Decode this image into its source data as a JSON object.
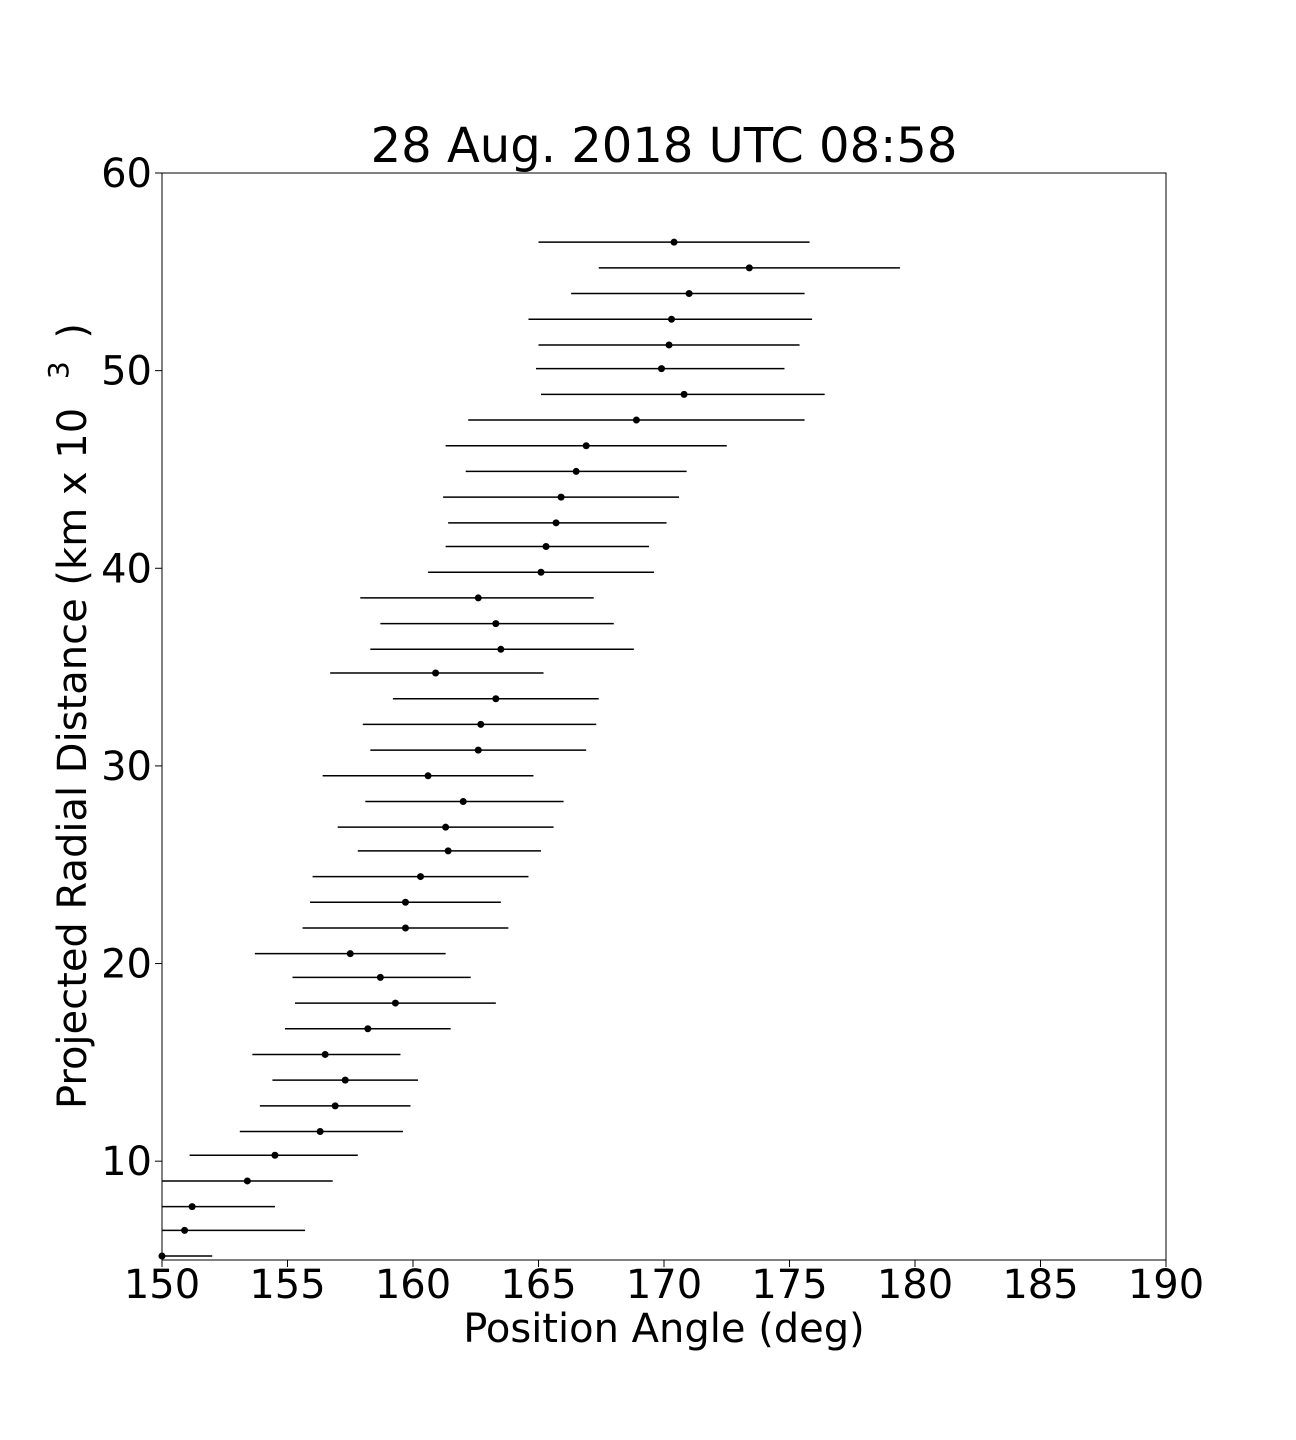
{
  "chart_data": {
    "type": "scatter",
    "title": "28 Aug. 2018 UTC 08:58",
    "xlabel": "Position Angle (deg)",
    "ylabel": "Projected Radial Distance (km x 10",
    "ylabel_superscript": "3",
    "ylabel_close": ")",
    "xlim": [
      150,
      190
    ],
    "ylim": [
      5,
      60
    ],
    "x_ticks": [
      150,
      155,
      160,
      165,
      170,
      175,
      180,
      185,
      190
    ],
    "x_tick_labels": [
      "150",
      "155",
      "160",
      "165",
      "170",
      "175",
      "180",
      "185",
      "190"
    ],
    "y_ticks": [
      10,
      20,
      30,
      40,
      50,
      60
    ],
    "y_tick_labels": [
      "10",
      "20",
      "30",
      "40",
      "50",
      "60"
    ],
    "grid": false,
    "legend": false,
    "marker_color": "#000000",
    "errorbar_color": "#000000",
    "series": [
      {
        "points": [
          {
            "x": 150.0,
            "y": 5.2,
            "xerr_low": 150.0,
            "xerr_high": 152.0
          },
          {
            "x": 150.9,
            "y": 6.5,
            "xerr_low": 150.0,
            "xerr_high": 155.7
          },
          {
            "x": 151.2,
            "y": 7.7,
            "xerr_low": 150.0,
            "xerr_high": 154.5
          },
          {
            "x": 153.4,
            "y": 9.0,
            "xerr_low": 150.0,
            "xerr_high": 156.8
          },
          {
            "x": 154.5,
            "y": 10.3,
            "xerr_low": 151.1,
            "xerr_high": 157.8
          },
          {
            "x": 156.3,
            "y": 11.5,
            "xerr_low": 153.1,
            "xerr_high": 159.6
          },
          {
            "x": 156.9,
            "y": 12.8,
            "xerr_low": 153.9,
            "xerr_high": 159.9
          },
          {
            "x": 157.3,
            "y": 14.1,
            "xerr_low": 154.4,
            "xerr_high": 160.2
          },
          {
            "x": 156.5,
            "y": 15.4,
            "xerr_low": 153.6,
            "xerr_high": 159.5
          },
          {
            "x": 158.2,
            "y": 16.7,
            "xerr_low": 154.9,
            "xerr_high": 161.5
          },
          {
            "x": 159.3,
            "y": 18.0,
            "xerr_low": 155.3,
            "xerr_high": 163.3
          },
          {
            "x": 158.7,
            "y": 19.3,
            "xerr_low": 155.2,
            "xerr_high": 162.3
          },
          {
            "x": 157.5,
            "y": 20.5,
            "xerr_low": 153.7,
            "xerr_high": 161.3
          },
          {
            "x": 159.7,
            "y": 21.8,
            "xerr_low": 155.6,
            "xerr_high": 163.8
          },
          {
            "x": 159.7,
            "y": 23.1,
            "xerr_low": 155.9,
            "xerr_high": 163.5
          },
          {
            "x": 160.3,
            "y": 24.4,
            "xerr_low": 156.0,
            "xerr_high": 164.6
          },
          {
            "x": 161.4,
            "y": 25.7,
            "xerr_low": 157.8,
            "xerr_high": 165.1
          },
          {
            "x": 161.3,
            "y": 26.9,
            "xerr_low": 157.0,
            "xerr_high": 165.6
          },
          {
            "x": 162.0,
            "y": 28.2,
            "xerr_low": 158.1,
            "xerr_high": 166.0
          },
          {
            "x": 160.6,
            "y": 29.5,
            "xerr_low": 156.4,
            "xerr_high": 164.8
          },
          {
            "x": 162.6,
            "y": 30.8,
            "xerr_low": 158.3,
            "xerr_high": 166.9
          },
          {
            "x": 162.7,
            "y": 32.1,
            "xerr_low": 158.0,
            "xerr_high": 167.3
          },
          {
            "x": 163.3,
            "y": 33.4,
            "xerr_low": 159.2,
            "xerr_high": 167.4
          },
          {
            "x": 160.9,
            "y": 34.7,
            "xerr_low": 156.7,
            "xerr_high": 165.2
          },
          {
            "x": 163.5,
            "y": 35.9,
            "xerr_low": 158.3,
            "xerr_high": 168.8
          },
          {
            "x": 163.3,
            "y": 37.2,
            "xerr_low": 158.7,
            "xerr_high": 168.0
          },
          {
            "x": 162.6,
            "y": 38.5,
            "xerr_low": 157.9,
            "xerr_high": 167.2
          },
          {
            "x": 165.1,
            "y": 39.8,
            "xerr_low": 160.6,
            "xerr_high": 169.6
          },
          {
            "x": 165.3,
            "y": 41.1,
            "xerr_low": 161.3,
            "xerr_high": 169.4
          },
          {
            "x": 165.7,
            "y": 42.3,
            "xerr_low": 161.4,
            "xerr_high": 170.1
          },
          {
            "x": 165.9,
            "y": 43.6,
            "xerr_low": 161.2,
            "xerr_high": 170.6
          },
          {
            "x": 166.5,
            "y": 44.9,
            "xerr_low": 162.1,
            "xerr_high": 170.9
          },
          {
            "x": 166.9,
            "y": 46.2,
            "xerr_low": 161.3,
            "xerr_high": 172.5
          },
          {
            "x": 168.9,
            "y": 47.5,
            "xerr_low": 162.2,
            "xerr_high": 175.6
          },
          {
            "x": 170.8,
            "y": 48.8,
            "xerr_low": 165.1,
            "xerr_high": 176.4
          },
          {
            "x": 169.9,
            "y": 50.1,
            "xerr_low": 164.9,
            "xerr_high": 174.8
          },
          {
            "x": 170.2,
            "y": 51.3,
            "xerr_low": 165.0,
            "xerr_high": 175.4
          },
          {
            "x": 170.3,
            "y": 52.6,
            "xerr_low": 164.6,
            "xerr_high": 175.9
          },
          {
            "x": 171.0,
            "y": 53.9,
            "xerr_low": 166.3,
            "xerr_high": 175.6
          },
          {
            "x": 173.4,
            "y": 55.2,
            "xerr_low": 167.4,
            "xerr_high": 179.4
          },
          {
            "x": 170.4,
            "y": 56.5,
            "xerr_low": 165.0,
            "xerr_high": 175.8
          }
        ]
      }
    ]
  }
}
